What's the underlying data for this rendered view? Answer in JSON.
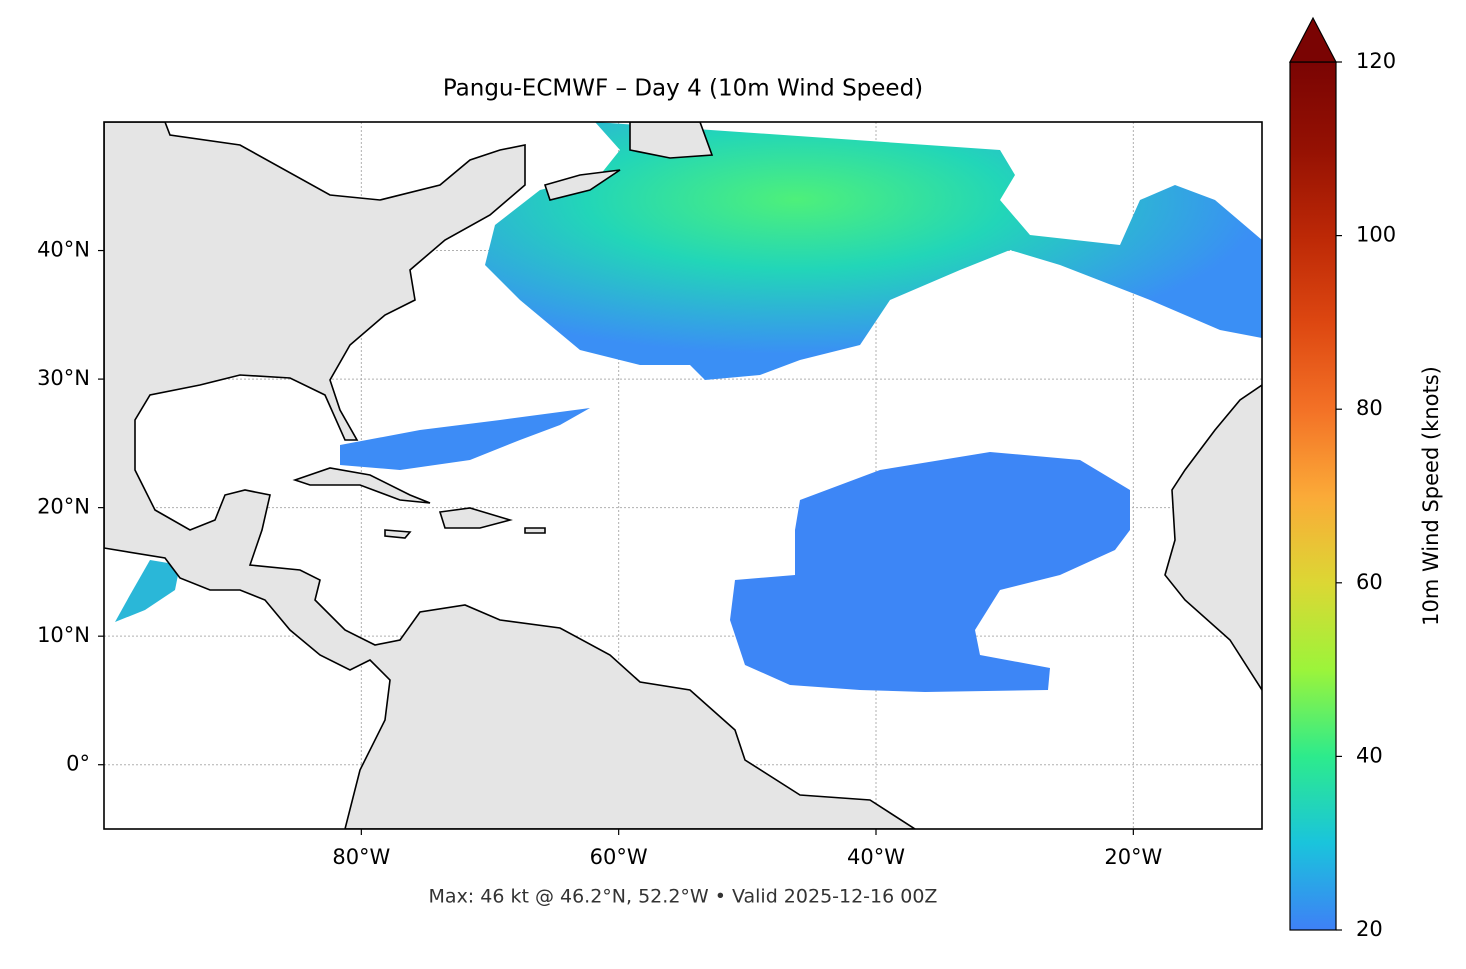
{
  "chart_data": {
    "type": "map",
    "title": "Pangu-ECMWF – Day 4 (10m Wind Speed)",
    "footer": "Max: 46 kt @ 46.2°N, 52.2°W • Valid 2025-12-16 00Z",
    "xlim": [
      -100,
      -10
    ],
    "ylim": [
      -5,
      50
    ],
    "xticks": [
      {
        "value": -80,
        "label": "80°W"
      },
      {
        "value": -60,
        "label": "60°W"
      },
      {
        "value": -40,
        "label": "40°W"
      },
      {
        "value": -20,
        "label": "20°W"
      }
    ],
    "yticks": [
      {
        "value": 0,
        "label": "0°"
      },
      {
        "value": 10,
        "label": "10°N"
      },
      {
        "value": 20,
        "label": "20°N"
      },
      {
        "value": 30,
        "label": "30°N"
      },
      {
        "value": 40,
        "label": "40°N"
      }
    ],
    "grid": true,
    "colorbar": {
      "label": "10m Wind Speed (knots)",
      "lim": [
        20,
        120
      ],
      "ticks": [
        20,
        40,
        60,
        80,
        100,
        120
      ],
      "colormap": [
        "#3e80f6",
        "#1ac4dc",
        "#2deb8c",
        "#9cf43a",
        "#dcd734",
        "#fbaa38",
        "#f37126",
        "#dd4711",
        "#bc2806",
        "#951103",
        "#7a0403"
      ]
    }
  }
}
